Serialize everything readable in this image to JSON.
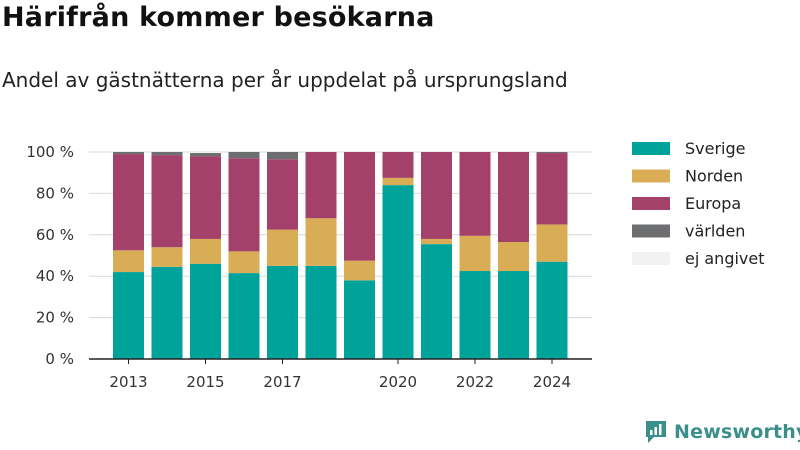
{
  "header": {
    "title": "Härifrån kommer besökarna",
    "subtitle": "Andel av gästnätterna per år uppdelat på ursprungsland"
  },
  "brand": {
    "name": "Newsworthy",
    "icon": "newsworthy-logo-icon",
    "color": "#3b8f8a"
  },
  "chart_data": {
    "type": "bar",
    "stacked": true,
    "x": [
      2013,
      2014,
      2015,
      2016,
      2017,
      2018,
      2019,
      2020,
      2021,
      2022,
      2023,
      2024
    ],
    "x_tick_labels": [
      "2013",
      "2015",
      "2017",
      "2020",
      "2022",
      "2024"
    ],
    "y_tick_labels": [
      "0 %",
      "20 %",
      "40 %",
      "60 %",
      "80 %",
      "100 %"
    ],
    "ylim": [
      0,
      100
    ],
    "grid": true,
    "legend_position": "right",
    "series": [
      {
        "name": "Sverige",
        "color": "#00a39a",
        "values": [
          42,
          44.5,
          46,
          41.5,
          45,
          45,
          38,
          84,
          55.5,
          42.5,
          42.5,
          47
        ]
      },
      {
        "name": "Norden",
        "color": "#d9ac56",
        "values": [
          10.5,
          9.5,
          12,
          10.5,
          17.5,
          23,
          9.5,
          3.5,
          2.5,
          17,
          14,
          18
        ]
      },
      {
        "name": "Europa",
        "color": "#a3416a",
        "values": [
          46.5,
          44.5,
          40,
          45,
          34,
          32,
          52.5,
          12.5,
          42,
          40.5,
          43.5,
          34.5
        ]
      },
      {
        "name": "världen",
        "color": "#6d6e70",
        "values": [
          1,
          1.5,
          1.5,
          3,
          3.5,
          0,
          0,
          0,
          0,
          0,
          0,
          0.5
        ]
      },
      {
        "name": "ej angivet",
        "color": "#f2f2f2",
        "values": [
          0,
          0,
          0.5,
          0,
          0,
          0,
          0,
          0,
          0,
          0,
          0,
          0
        ]
      }
    ]
  }
}
